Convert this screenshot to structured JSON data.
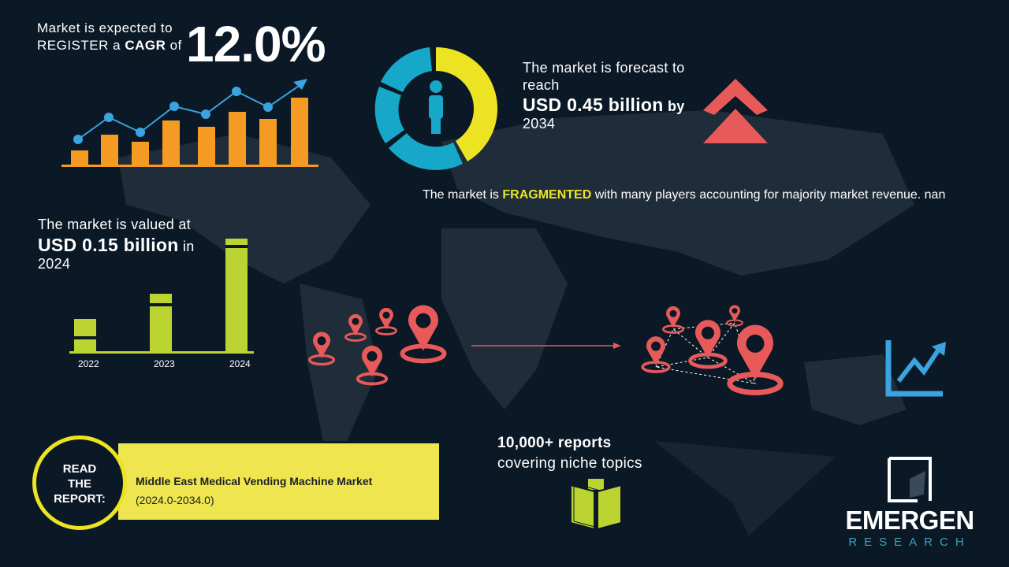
{
  "cagr": {
    "line1": "Market is expected to",
    "line2_pre": "REGISTER a ",
    "line2_bold": "CAGR",
    "line2_post": " of",
    "value": "12.0%"
  },
  "forecast": {
    "line1": "The market is forecast to",
    "line2": "reach",
    "value": "USD 0.45 billion",
    "suffix": "by",
    "year": "2034"
  },
  "fragmented": {
    "pre": "The market is ",
    "highlight": "FRAGMENTED",
    "post": " with many players accounting for majority market revenue. nan"
  },
  "valued": {
    "line1": "The market is valued at",
    "value": "USD 0.15 billion",
    "suffix": "in",
    "year": "2024"
  },
  "growth_chart": {
    "years": [
      "2022",
      "2023",
      "2024"
    ]
  },
  "reports": {
    "line1": "10,000+ reports",
    "line2": "covering niche topics"
  },
  "read_report": {
    "badge_l1": "READ",
    "badge_l2": "THE",
    "badge_l3": "REPORT:",
    "title": "Middle East Medical Vending Machine Market",
    "period": "(2024.0-2034.0)"
  },
  "logo": {
    "name": "EMERGEN",
    "sub": "RESEARCH"
  },
  "colors": {
    "background": "#0b1826",
    "orange": "#f59a23",
    "blue": "#3aa3e0",
    "yellow": "#ece322",
    "cyan": "#17a8c9",
    "red": "#e85a5a",
    "green": "#bcd431",
    "banner": "#efe64f"
  }
}
